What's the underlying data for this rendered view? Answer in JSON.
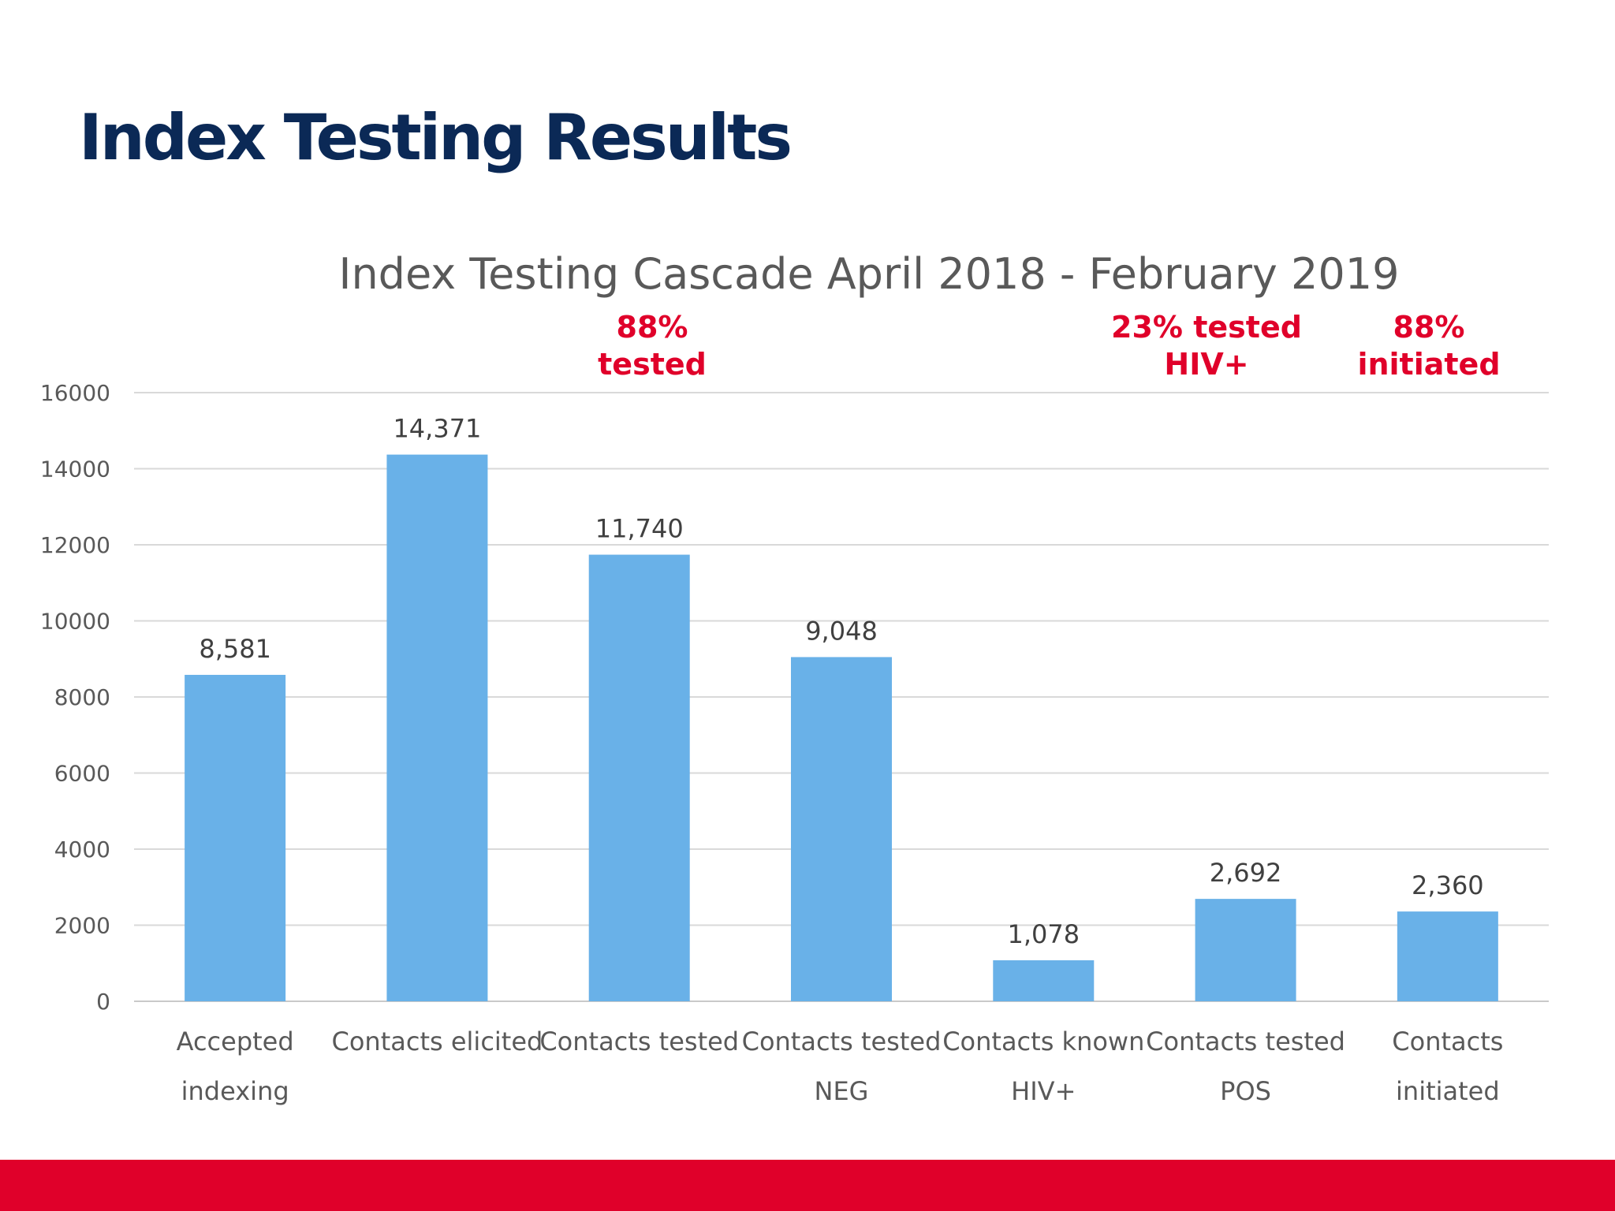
{
  "slide": {
    "title": "Index Testing Results",
    "footer_color": "#e0002a",
    "title_color": "#0b2956"
  },
  "colors": {
    "bar": "#69b1e8",
    "annotation": "#e0002a"
  },
  "chart_data": {
    "type": "bar",
    "title": "Index Testing Cascade April 2018 - February 2019",
    "xlabel": "",
    "ylabel": "",
    "ylim": [
      0,
      16000
    ],
    "yticks": [
      0,
      2000,
      4000,
      6000,
      8000,
      10000,
      12000,
      14000,
      16000
    ],
    "grid": true,
    "legend": "none",
    "categories": [
      [
        "Accepted",
        "indexing"
      ],
      [
        "Contacts elicited"
      ],
      [
        "Contacts tested"
      ],
      [
        "Contacts tested",
        "NEG"
      ],
      [
        "Contacts known",
        "HIV+"
      ],
      [
        "Contacts tested",
        "POS"
      ],
      [
        "Contacts",
        "initiated"
      ]
    ],
    "values": [
      8581,
      14371,
      11740,
      9048,
      1078,
      2692,
      2360
    ],
    "data_labels": [
      "8,581",
      "14,371",
      "11,740",
      "9,048",
      "1,078",
      "2,692",
      "2,360"
    ],
    "annotations": [
      {
        "category_index": 2,
        "lines": [
          "88%",
          "tested"
        ]
      },
      {
        "category_index": 5,
        "lines": [
          "23% tested",
          "HIV+"
        ]
      },
      {
        "category_index": 6,
        "lines": [
          "88%",
          "initiated"
        ]
      }
    ]
  }
}
